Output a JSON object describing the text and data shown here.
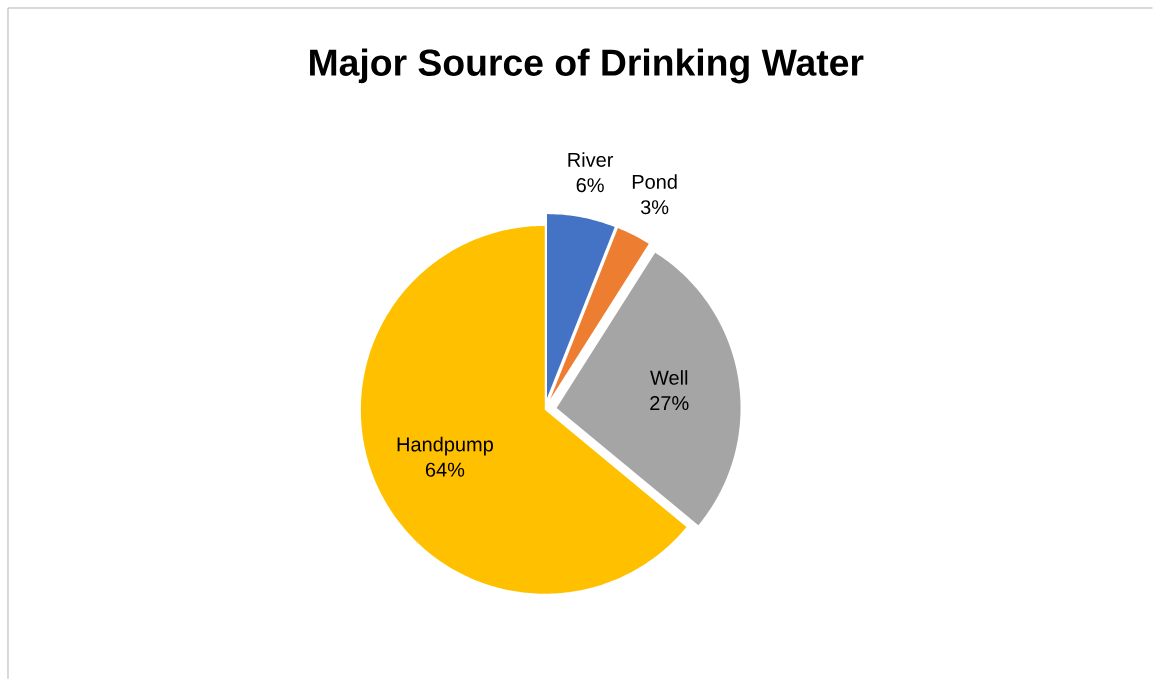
{
  "chart_data": {
    "type": "pie",
    "title": "Major Source of Drinking Water",
    "categories": [
      "River",
      "Pond",
      "Well",
      "Handpump"
    ],
    "values": [
      6,
      3,
      27,
      64
    ],
    "value_labels": [
      "6%",
      "3%",
      "27%",
      "64%"
    ],
    "colors": [
      "#4472c4",
      "#ed7d31",
      "#a5a5a5",
      "#ffc000"
    ]
  }
}
